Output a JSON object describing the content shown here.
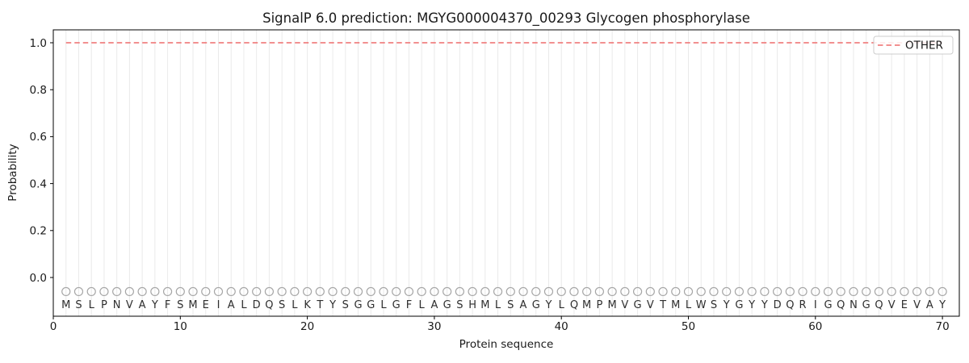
{
  "chart_data": {
    "type": "line",
    "title": "SignalP 6.0 prediction: MGYG000004370_00293 Glycogen phosphorylase",
    "xlabel": "Protein sequence",
    "ylabel": "Probability",
    "xlim": [
      0,
      71.3
    ],
    "ylim": [
      -0.17,
      1.06
    ],
    "xticks": [
      0,
      10,
      20,
      30,
      40,
      50,
      60,
      70
    ],
    "yticks": [
      0.0,
      0.2,
      0.4,
      0.6,
      0.8,
      1.0
    ],
    "ytick_labels": [
      "0.0",
      "0.2",
      "0.4",
      "0.6",
      "0.8",
      "1.0"
    ],
    "grid": {
      "vertical_per_residue": true,
      "color": "#eaeaea"
    },
    "sequence": "MSLPNVAYFSMEIALDQSLKTYSGGLGFLAGSHMLSAGYLQMPMVGVTMLWSYGYYDQRIGQNGQVEVAY",
    "sequence_start": 1,
    "residue_marker": {
      "symbol": "open-circle",
      "color": "#a6a6a6",
      "y": -0.06
    },
    "residue_letter_y": -0.115,
    "series": [
      {
        "name": "OTHER",
        "color": "#f08080",
        "linestyle": "dashed",
        "x_start": 1,
        "values": [
          1.0,
          1.0,
          1.0,
          1.0,
          1.0,
          1.0,
          1.0,
          1.0,
          1.0,
          1.0,
          1.0,
          1.0,
          1.0,
          1.0,
          1.0,
          1.0,
          1.0,
          1.0,
          1.0,
          1.0,
          1.0,
          1.0,
          1.0,
          1.0,
          1.0,
          1.0,
          1.0,
          1.0,
          1.0,
          1.0,
          1.0,
          1.0,
          1.0,
          1.0,
          1.0,
          1.0,
          1.0,
          1.0,
          1.0,
          1.0,
          1.0,
          1.0,
          1.0,
          1.0,
          1.0,
          1.0,
          1.0,
          1.0,
          1.0,
          1.0,
          1.0,
          1.0,
          1.0,
          1.0,
          1.0,
          1.0,
          1.0,
          1.0,
          1.0,
          1.0,
          1.0,
          1.0,
          1.0,
          1.0,
          1.0,
          1.0,
          1.0,
          1.0,
          1.0,
          1.0
        ]
      }
    ],
    "legend": {
      "position": "upper right",
      "entries": [
        {
          "label": "OTHER",
          "color": "#f08080",
          "linestyle": "dashed"
        }
      ]
    }
  }
}
